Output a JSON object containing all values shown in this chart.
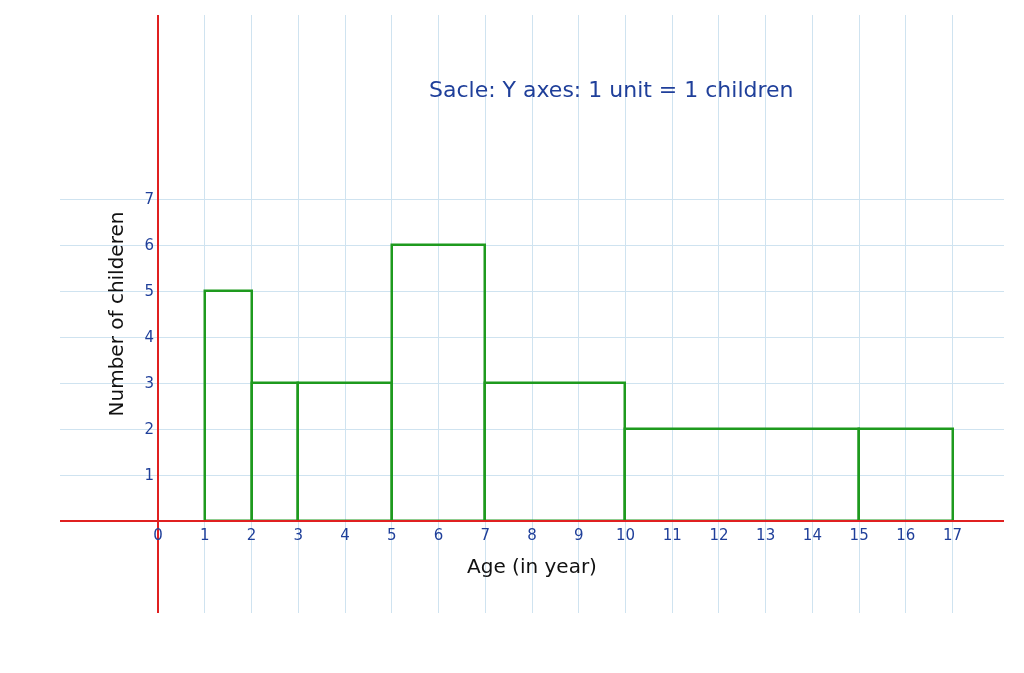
{
  "chart_data": {
    "type": "histogram",
    "bins": [
      1,
      2,
      3,
      5,
      7,
      10,
      15,
      17
    ],
    "values": [
      5,
      3,
      3,
      6,
      3,
      2,
      2
    ],
    "color": "#1e9a1e",
    "xlabel": "Age (in year)",
    "ylabel": "Number of childeren",
    "annotations": [
      "Sacle: Y axes: 1 unit = 1 children"
    ],
    "xlim": [
      -2.1,
      18.1
    ],
    "ylim": [
      -2,
      11
    ],
    "xticks": [
      0,
      1,
      2,
      3,
      4,
      5,
      6,
      7,
      8,
      9,
      10,
      11,
      12,
      13,
      14,
      15,
      16,
      17
    ],
    "yticks": [
      1,
      2,
      3,
      4,
      5,
      6,
      7
    ],
    "grid": true
  }
}
